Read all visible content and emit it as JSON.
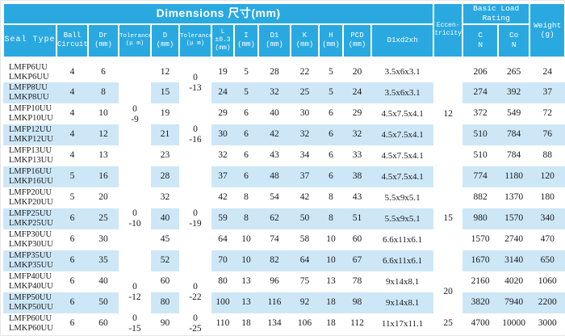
{
  "table": {
    "title": "Dimensions 尺寸(mm)",
    "basic_load_rating": "Basic Load\nRating",
    "columns": [
      {
        "id": "seal_type",
        "label": "Seal Type"
      },
      {
        "id": "ball_circuit",
        "label": "Ball\nCircuit"
      },
      {
        "id": "dr",
        "label": "Dr\n(mm)"
      },
      {
        "id": "tol_dr",
        "label": "Tolerance\n(μ m)"
      },
      {
        "id": "d",
        "label": "D\n(mm)"
      },
      {
        "id": "tol_d",
        "label": "Tolerance\n(μ m)"
      },
      {
        "id": "l",
        "label": "L\n±0.3\n(mm)"
      },
      {
        "id": "i",
        "label": "I\n(mm)"
      },
      {
        "id": "d1",
        "label": "D1\n(mm)"
      },
      {
        "id": "k",
        "label": "K\n(mm)"
      },
      {
        "id": "h",
        "label": "H\n(mm)"
      },
      {
        "id": "pcd",
        "label": "PCD\n(mm)"
      },
      {
        "id": "d1xd2xh",
        "label": "D1xd2xh"
      },
      {
        "id": "eccentricity",
        "label": "Eccen-\ntricity"
      },
      {
        "id": "c",
        "label": "C\nN"
      },
      {
        "id": "co",
        "label": "Co\nN"
      },
      {
        "id": "weight",
        "label": "Weight\n(g)"
      }
    ],
    "rows": [
      {
        "seal_type": "LMFP6UU\nLMKP6UU",
        "ball_circuit": 4,
        "dr": 6,
        "d": 12,
        "l": 19,
        "i": 5,
        "d1": 28,
        "k": 22,
        "h": 5,
        "pcd": 20,
        "d1xd2xh": "3.5x6x3.1",
        "c": 206,
        "co": 265,
        "weight": 24
      },
      {
        "seal_type": "LMFP8UU\nLMKP8UU",
        "ball_circuit": 4,
        "dr": 8,
        "d": 15,
        "l": 24,
        "i": 5,
        "d1": 32,
        "k": 25,
        "h": 5,
        "pcd": 24,
        "d1xd2xh": "3.5x6x3.1",
        "c": 274,
        "co": 392,
        "weight": 37
      },
      {
        "seal_type": "LMFP10UU\nLMKP10UU",
        "ball_circuit": 4,
        "dr": 10,
        "d": 19,
        "l": 29,
        "i": 6,
        "d1": 40,
        "k": 30,
        "h": 6,
        "pcd": 29,
        "d1xd2xh": "4.5x7.5x4.1",
        "c": 372,
        "co": 549,
        "weight": 72
      },
      {
        "seal_type": "LMFP12UU\nLMKP12UU",
        "ball_circuit": 4,
        "dr": 12,
        "d": 21,
        "l": 30,
        "i": 6,
        "d1": 42,
        "k": 32,
        "h": 6,
        "pcd": 32,
        "d1xd2xh": "4.5x7.5x4.1",
        "c": 510,
        "co": 784,
        "weight": 76
      },
      {
        "seal_type": "LMFP13UU\nLMKP13UU",
        "ball_circuit": 4,
        "dr": 13,
        "d": 23,
        "l": 32,
        "i": 6,
        "d1": 43,
        "k": 34,
        "h": 6,
        "pcd": 33,
        "d1xd2xh": "4.5x7.5x4.1",
        "c": 510,
        "co": 784,
        "weight": 88
      },
      {
        "seal_type": "LMFP16UU\nLMKP16UU",
        "ball_circuit": 5,
        "dr": 16,
        "d": 28,
        "l": 37,
        "i": 6,
        "d1": 48,
        "k": 37,
        "h": 6,
        "pcd": 38,
        "d1xd2xh": "4.5x7.5x4.1",
        "c": 774,
        "co": 1180,
        "weight": 120
      },
      {
        "seal_type": "LMFP20UU\nLMKP20UU",
        "ball_circuit": 5,
        "dr": 20,
        "d": 32,
        "l": 42,
        "i": 8,
        "d1": 54,
        "k": 42,
        "h": 8,
        "pcd": 43,
        "d1xd2xh": "5.5x9x5.1",
        "c": 882,
        "co": 1370,
        "weight": 180
      },
      {
        "seal_type": "LMFP25UU\nLMKP25UU",
        "ball_circuit": 6,
        "dr": 25,
        "d": 40,
        "l": 59,
        "i": 8,
        "d1": 62,
        "k": 50,
        "h": 8,
        "pcd": 51,
        "d1xd2xh": "5.5x9x5.1",
        "c": 980,
        "co": 1570,
        "weight": 340
      },
      {
        "seal_type": "LMFP30UU\nLMKP30UU",
        "ball_circuit": 6,
        "dr": 30,
        "d": 45,
        "l": 64,
        "i": 10,
        "d1": 74,
        "k": 58,
        "h": 10,
        "pcd": 60,
        "d1xd2xh": "6.6x11x6.1",
        "c": 1570,
        "co": 2740,
        "weight": 470
      },
      {
        "seal_type": "LMFP35UU\nLMKP35UU",
        "ball_circuit": 6,
        "dr": 35,
        "d": 52,
        "l": 70,
        "i": 10,
        "d1": 82,
        "k": 64,
        "h": 10,
        "pcd": 67,
        "d1xd2xh": "6.6x11x6.1",
        "c": 1670,
        "co": 3140,
        "weight": 650
      },
      {
        "seal_type": "LMFP40UU\nLMKP40UU",
        "ball_circuit": 6,
        "dr": 40,
        "d": 60,
        "l": 80,
        "i": 13,
        "d1": 96,
        "k": 75,
        "h": 13,
        "pcd": 78,
        "d1xd2xh": "9x14x8.1",
        "c": 2160,
        "co": 4020,
        "weight": 1060
      },
      {
        "seal_type": "LMFP50UU\nLMKP50UU",
        "ball_circuit": 6,
        "dr": 50,
        "d": 80,
        "l": 100,
        "i": 13,
        "d1": 116,
        "k": 92,
        "h": 18,
        "pcd": 98,
        "d1xd2xh": "9x14x8.1",
        "c": 3820,
        "co": 7940,
        "weight": 2200
      },
      {
        "seal_type": "LMFP60UU\nLMKP60UU",
        "ball_circuit": 6,
        "dr": 60,
        "d": 90,
        "l": 110,
        "i": 18,
        "d1": 134,
        "k": 106,
        "h": 18,
        "pcd": 112,
        "d1xd2xh": "11x17x11.1",
        "c": 4700,
        "co": 10000,
        "weight": 3000
      }
    ],
    "merged": {
      "tol_dr": [
        {
          "rows": [
            0,
            4
          ],
          "value": "0\n-9"
        },
        {
          "rows": [
            5,
            9
          ],
          "value": "0\n-10"
        },
        {
          "rows": [
            10,
            11
          ],
          "value": "0\n-12"
        },
        {
          "rows": [
            12,
            12
          ],
          "value": "0\n-15"
        }
      ],
      "tol_d": [
        {
          "rows": [
            0,
            1
          ],
          "value": "0\n-13"
        },
        {
          "rows": [
            2,
            4
          ],
          "value": "0\n-16"
        },
        {
          "rows": [
            5,
            9
          ],
          "value": "0\n-19"
        },
        {
          "rows": [
            10,
            11
          ],
          "value": "0\n-22"
        },
        {
          "rows": [
            12,
            12
          ],
          "value": "0\n-25"
        }
      ],
      "eccentricity": [
        {
          "rows": [
            0,
            4
          ],
          "value": "12"
        },
        {
          "rows": [
            5,
            9
          ],
          "value": "15"
        },
        {
          "rows": [
            10,
            11
          ],
          "value": "20"
        },
        {
          "rows": [
            12,
            12
          ],
          "value": "25"
        }
      ]
    },
    "colors": {
      "header_bg": "#29a9e0",
      "stripe_bg": "#cde7f7",
      "header_text": "#ffffff",
      "body_text": "#1a1a1a"
    }
  }
}
